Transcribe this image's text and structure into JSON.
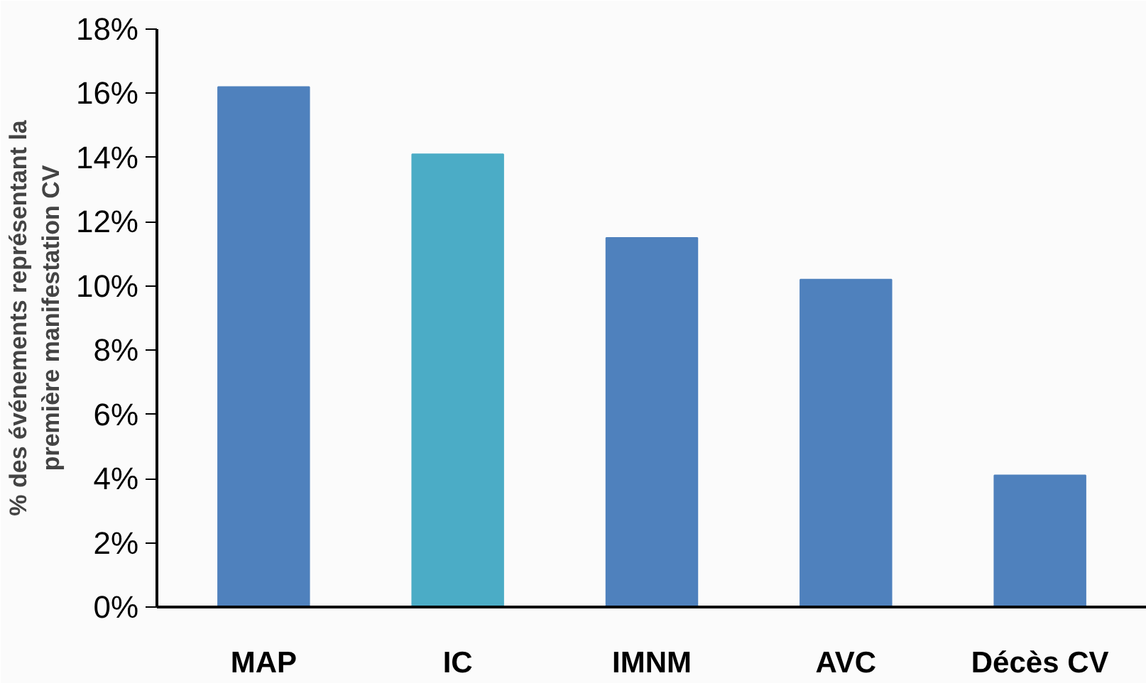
{
  "chart_data": {
    "type": "bar",
    "ylabel": "% des événements représentant la\npremière manifestation CV",
    "categories": [
      "MAP",
      "IC",
      "IMNM",
      "AVC",
      "Décès CV"
    ],
    "values": [
      16.2,
      14.1,
      11.5,
      10.2,
      4.1
    ],
    "colors": [
      "#4f81bd",
      "#4bacc6",
      "#4f81bd",
      "#4f81bd",
      "#4f81bd"
    ],
    "ylim": [
      0,
      18
    ],
    "yticks": [
      {
        "value": 0,
        "label": "0%"
      },
      {
        "value": 2,
        "label": "2%"
      },
      {
        "value": 4,
        "label": "4%"
      },
      {
        "value": 6,
        "label": "6%"
      },
      {
        "value": 8,
        "label": "8%"
      },
      {
        "value": 10,
        "label": "10%"
      },
      {
        "value": 12,
        "label": "12%"
      },
      {
        "value": 14,
        "label": "14%"
      },
      {
        "value": 16,
        "label": "16%"
      },
      {
        "value": 18,
        "label": "18%"
      }
    ],
    "grid": false
  }
}
